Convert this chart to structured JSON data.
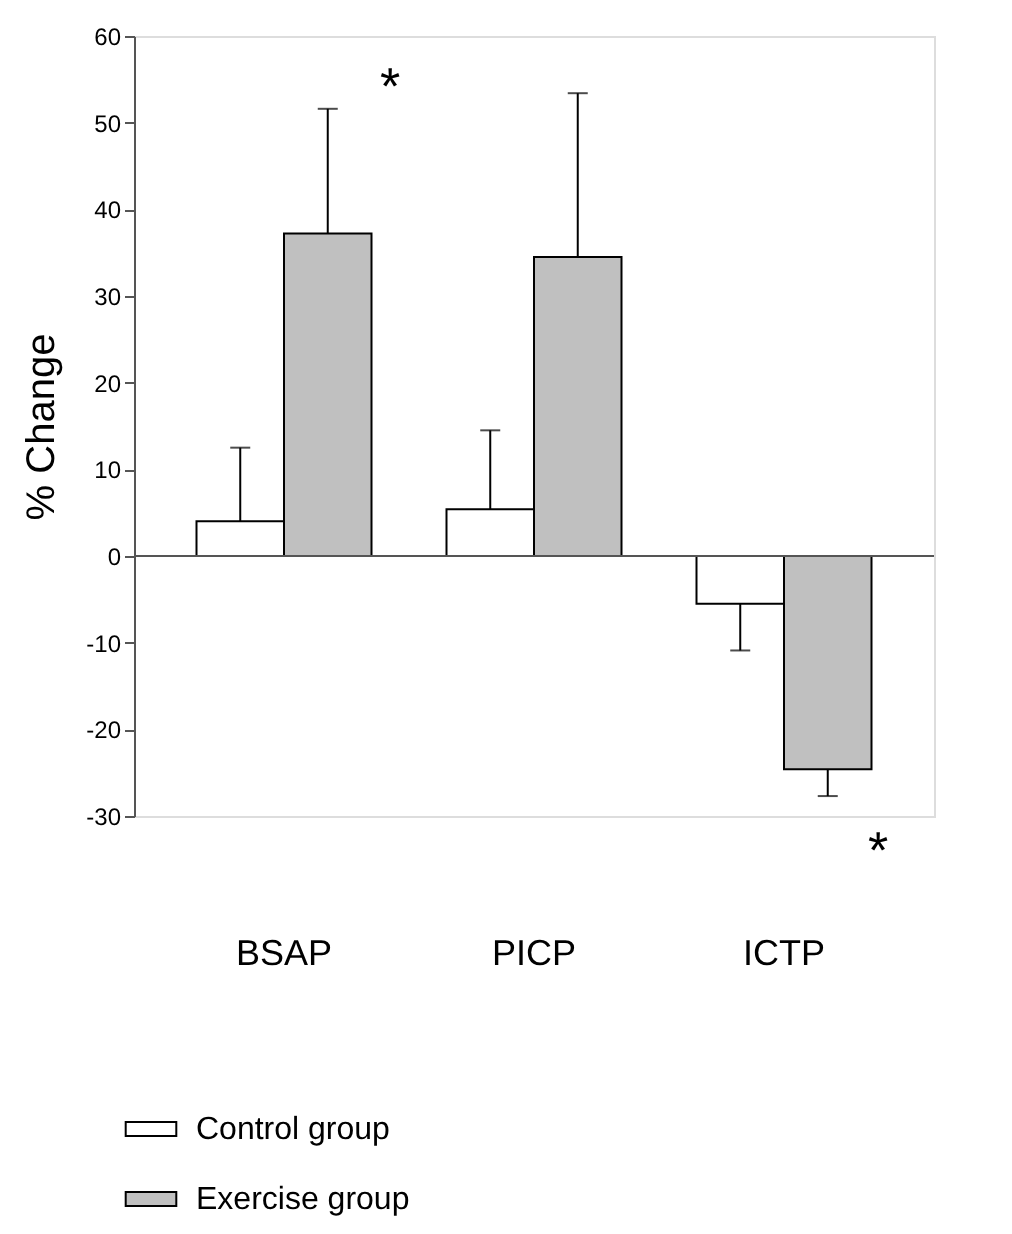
{
  "chart_data": {
    "type": "bar",
    "ylabel": "% Change",
    "categories": [
      "BSAP",
      "PICP",
      "ICTP"
    ],
    "series": [
      {
        "name": "Control group",
        "color": "#ffffff",
        "values": [
          4.0,
          5.4,
          -5.5
        ],
        "errors": [
          [
            4.0,
            12.5
          ],
          [
            5.4,
            14.5
          ],
          [
            -10.9,
            -5.5
          ]
        ]
      },
      {
        "name": "Exercise group",
        "color": "#c0c0c0",
        "values": [
          37.2,
          34.5,
          -24.6
        ],
        "errors": [
          [
            37.2,
            51.6
          ],
          [
            34.5,
            53.4
          ],
          [
            -27.7,
            -24.6
          ]
        ]
      }
    ],
    "ylim": [
      -30,
      60
    ],
    "yticks": [
      -30,
      -20,
      -10,
      0,
      10,
      20,
      30,
      40,
      50,
      60
    ],
    "ref_lines": [
      {
        "axis": "y",
        "value": 0
      }
    ],
    "annotations": [
      "*",
      "*"
    ],
    "grid": false,
    "legend": "bottom"
  }
}
